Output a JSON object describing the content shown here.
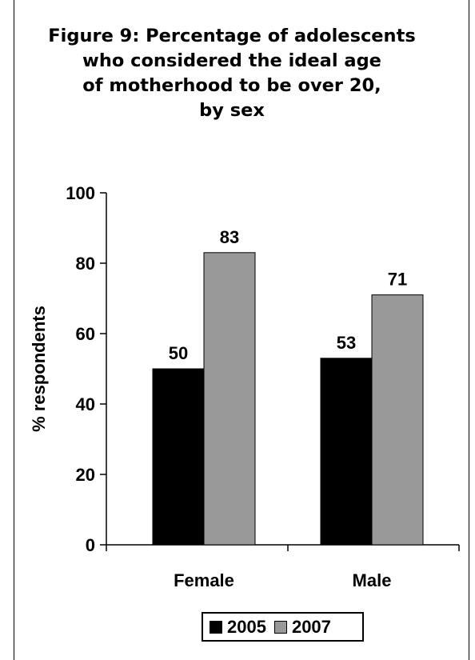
{
  "chart_data": {
    "type": "bar",
    "title_lines": [
      "Figure 9: Percentage of adolescents",
      "who considered the ideal age",
      "of motherhood to be over 20,",
      "by sex"
    ],
    "xlabel": "",
    "ylabel": "% respondents",
    "ylim": [
      0,
      100
    ],
    "yticks": [
      "0",
      "20",
      "40",
      "60",
      "80",
      "100"
    ],
    "categories": [
      "Female",
      "Male"
    ],
    "series": [
      {
        "name": "2005",
        "values": [
          50,
          53
        ],
        "labels": [
          "50",
          "53"
        ],
        "color": "#000000"
      },
      {
        "name": "2007",
        "values": [
          83,
          71
        ],
        "labels": [
          "83",
          "71"
        ],
        "color": "#999999"
      }
    ],
    "grid": false,
    "legend_position": "bottom"
  }
}
